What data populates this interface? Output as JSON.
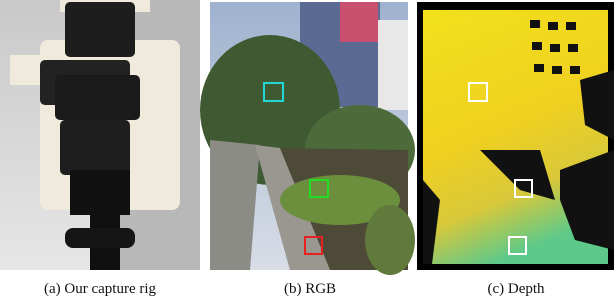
{
  "figure": {
    "panels": [
      {
        "caption": "(a) Our capture rig"
      },
      {
        "caption": "(b) RGB"
      },
      {
        "caption": "(c) Depth"
      }
    ]
  }
}
